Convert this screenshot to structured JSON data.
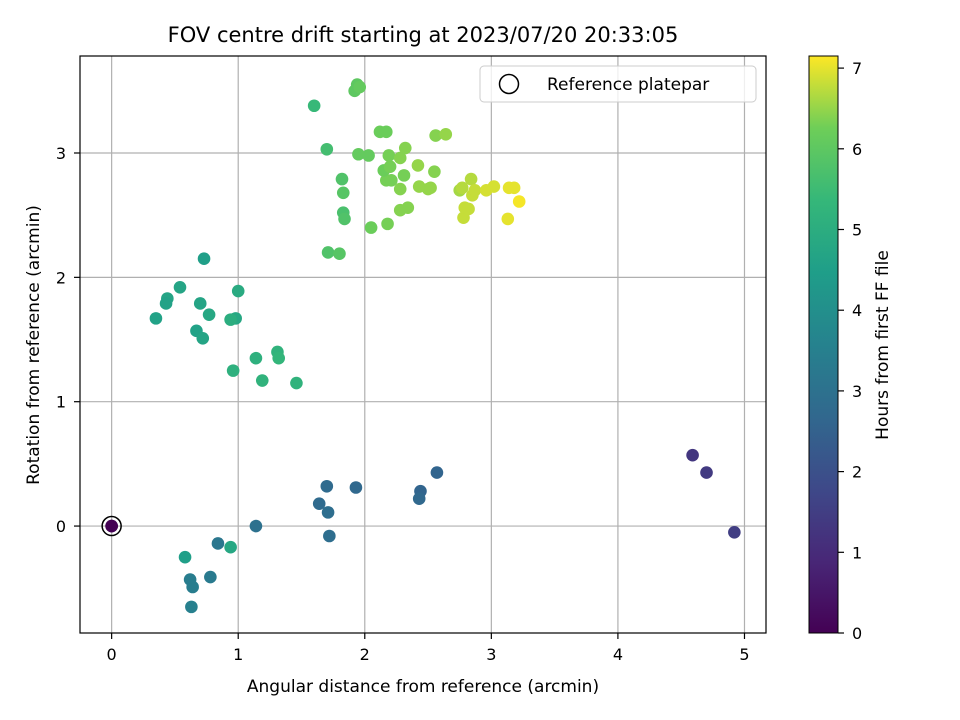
{
  "chart_data": {
    "type": "scatter",
    "title": "FOV centre drift starting at 2023/07/20 20:33:05",
    "xlabel": "Angular distance from reference (arcmin)",
    "ylabel": "Rotation from reference (arcmin)",
    "xlim": [
      -0.25,
      5.17
    ],
    "ylim": [
      -0.86,
      3.78
    ],
    "xticks": [
      0,
      1,
      2,
      3,
      4,
      5
    ],
    "yticks": [
      0,
      1,
      2,
      3
    ],
    "grid": true,
    "legend": {
      "placement": "top-right",
      "entries": [
        "Reference platepar"
      ]
    },
    "reference_point": {
      "x": 0,
      "y": 0
    },
    "colorbar": {
      "label": "Hours from first FF file",
      "colormap": "viridis",
      "range": [
        0,
        7.15
      ],
      "ticks": [
        0,
        1,
        2,
        3,
        4,
        5,
        6,
        7
      ]
    },
    "series": [
      {
        "x": [
          0.0,
          0.0
        ],
        "y": [
          0.0,
          0.0
        ],
        "c": [
          0.0,
          0.0
        ]
      },
      {
        "x": [
          4.59,
          4.7,
          4.92,
          2.57,
          2.44,
          2.43,
          1.93,
          1.7,
          1.64,
          1.71,
          1.72,
          1.14
        ],
        "y": [
          0.57,
          0.43,
          -0.05,
          0.43,
          0.28,
          0.22,
          0.31,
          0.32,
          0.18,
          0.11,
          -0.08,
          0.0
        ],
        "c": [
          1.3,
          1.4,
          1.5,
          2.6,
          2.6,
          2.7,
          2.7,
          2.8,
          2.8,
          2.9,
          2.9,
          3.0
        ]
      },
      {
        "x": [
          0.84,
          0.78,
          0.62,
          0.64,
          0.63,
          0.58,
          0.94
        ],
        "y": [
          -0.14,
          -0.41,
          -0.43,
          -0.49,
          -0.65,
          -0.25,
          -0.17
        ],
        "c": [
          3.2,
          3.3,
          3.4,
          3.4,
          3.5,
          4.5,
          4.8
        ]
      },
      {
        "x": [
          0.73,
          0.35,
          0.54,
          0.44,
          0.43,
          0.7,
          0.77,
          0.67,
          0.72,
          1.0,
          0.98,
          0.94
        ],
        "y": [
          2.15,
          1.67,
          1.92,
          1.83,
          1.79,
          1.79,
          1.7,
          1.57,
          1.51,
          1.89,
          1.67,
          1.66
        ],
        "c": [
          4.5,
          4.6,
          4.7,
          4.7,
          4.6,
          4.7,
          4.8,
          4.6,
          4.7,
          4.9,
          4.8,
          5.0
        ]
      },
      {
        "x": [
          0.96,
          1.14,
          1.19,
          1.31,
          1.32,
          1.46
        ],
        "y": [
          1.25,
          1.35,
          1.17,
          1.4,
          1.35,
          1.15
        ],
        "c": [
          5.1,
          5.1,
          5.2,
          5.2,
          5.3,
          5.2
        ]
      },
      {
        "x": [
          1.6,
          1.7,
          1.71,
          1.8,
          1.82,
          1.83,
          1.84,
          1.83,
          1.92,
          1.94,
          1.96,
          1.95,
          2.03,
          2.05,
          2.12,
          2.17,
          2.17,
          2.15,
          2.18,
          2.2,
          2.19,
          2.21,
          2.28,
          2.28,
          2.28,
          2.32,
          2.31,
          2.34,
          2.42,
          2.43,
          2.5,
          2.52,
          2.55,
          2.56,
          2.64
        ],
        "y": [
          3.38,
          3.03,
          2.2,
          2.19,
          2.79,
          2.52,
          2.47,
          2.68,
          3.5,
          3.55,
          3.53,
          2.99,
          2.98,
          2.4,
          3.17,
          3.17,
          2.78,
          2.86,
          2.43,
          2.89,
          2.98,
          2.78,
          2.96,
          2.54,
          2.71,
          3.04,
          2.82,
          2.56,
          2.9,
          2.73,
          2.71,
          2.72,
          2.85,
          3.14,
          3.15
        ],
        "c": [
          5.4,
          5.6,
          5.8,
          5.9,
          5.8,
          5.7,
          5.8,
          5.9,
          6.0,
          6.0,
          6.1,
          6.1,
          6.1,
          6.2,
          6.2,
          6.2,
          6.3,
          6.2,
          6.3,
          6.3,
          6.3,
          6.3,
          6.4,
          6.4,
          6.4,
          6.4,
          6.3,
          6.4,
          6.5,
          6.5,
          6.5,
          6.5,
          6.4,
          6.4,
          6.5
        ]
      },
      {
        "x": [
          2.75,
          2.77,
          2.78,
          2.79,
          2.82,
          2.84,
          2.85,
          2.87,
          2.96,
          3.02,
          3.13,
          3.14,
          3.18,
          3.22
        ],
        "y": [
          2.7,
          2.72,
          2.48,
          2.56,
          2.55,
          2.79,
          2.66,
          2.7,
          2.7,
          2.73,
          2.47,
          2.72,
          2.72,
          2.61
        ],
        "c": [
          6.6,
          6.7,
          6.8,
          6.8,
          6.8,
          6.7,
          6.8,
          6.8,
          6.9,
          6.9,
          7.0,
          7.0,
          7.0,
          7.1
        ]
      }
    ]
  }
}
